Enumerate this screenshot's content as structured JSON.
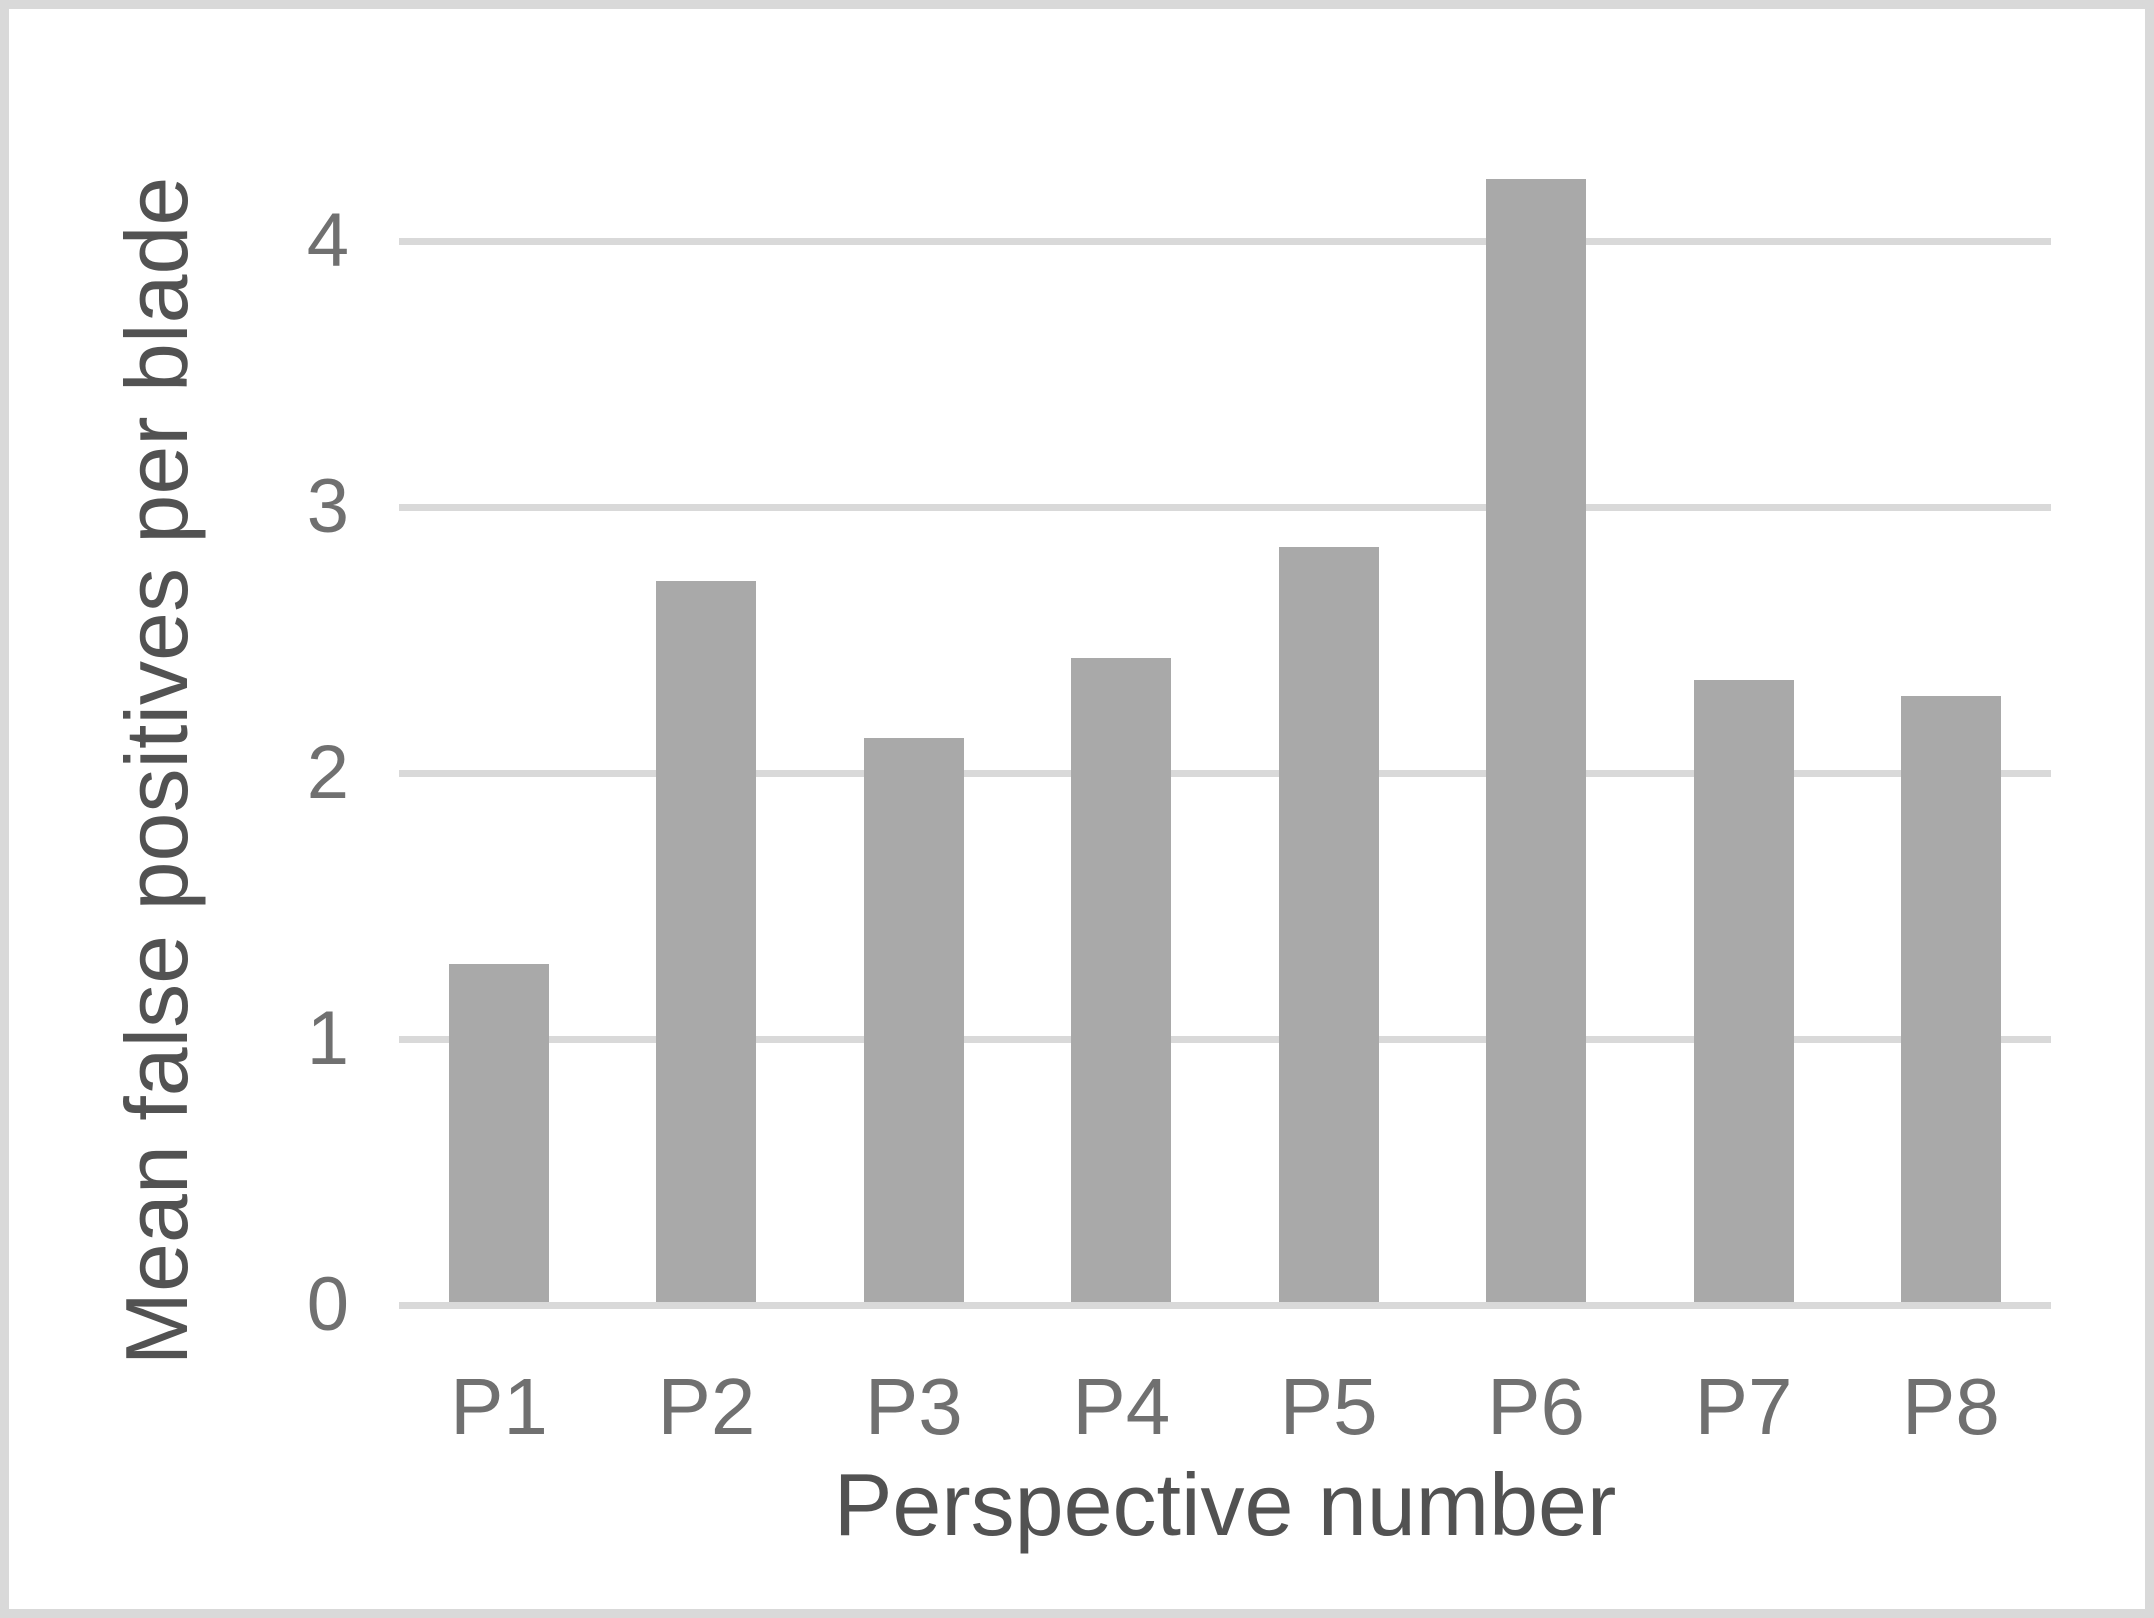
{
  "chart_data": {
    "type": "bar",
    "title": "",
    "categories": [
      "P1",
      "P2",
      "P3",
      "P4",
      "P5",
      "P6",
      "P7",
      "P8"
    ],
    "values": [
      1.27,
      2.71,
      2.12,
      2.42,
      2.84,
      4.22,
      2.34,
      2.28
    ],
    "xlabel": "Perspective number",
    "ylabel": "Mean false positives per blade",
    "yticks": [
      0,
      1,
      2,
      3,
      4
    ],
    "ylim": [
      0,
      4.53
    ],
    "grid": true,
    "legend": false,
    "bar_color": "#a9a9a9",
    "gridline_color": "#d9d9d9",
    "tick_color": "#707070",
    "axis_title_color": "#525252",
    "frame_border_color": "#d9d9d9"
  }
}
